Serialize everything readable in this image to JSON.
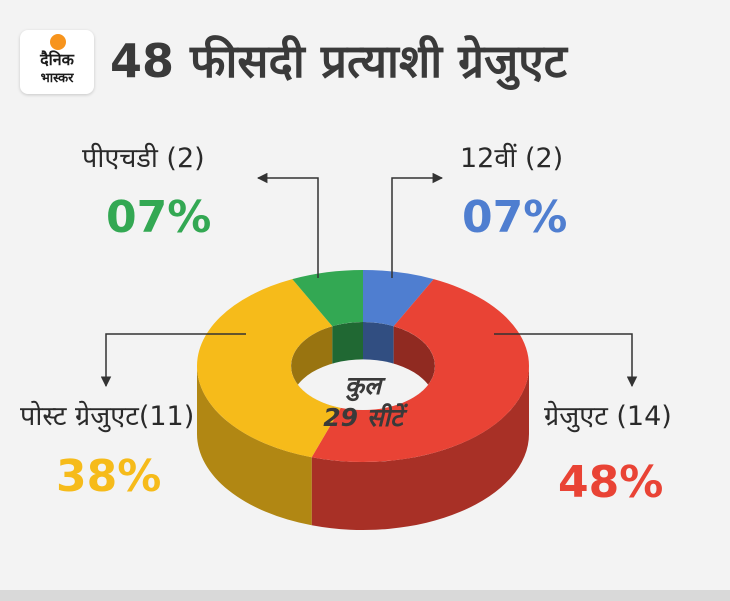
{
  "header": {
    "logo_line1": "दैनिक",
    "logo_line2": "भास्कर",
    "title": "48 फीसदी प्रत्याशी ग्रेजुएट"
  },
  "center": {
    "line1": "कुल",
    "line2": "29 सीटें"
  },
  "colors": {
    "red": "#e94335",
    "yellow": "#f6bb1a",
    "green": "#33a853",
    "blue": "#4f7ed0"
  },
  "chart_data": {
    "type": "pie",
    "donut": true,
    "legend": "none",
    "categories": [
      "12वीं",
      "ग्रेजुएट",
      "पोस्ट ग्रेजुएट",
      "पीएचडी"
    ],
    "counts": [
      2,
      14,
      11,
      2
    ],
    "values": [
      7,
      48,
      38,
      7
    ],
    "labels": [
      "12वीं (2)",
      "ग्रेजुएट (14)",
      "पोस्ट ग्रेजुएट(11)",
      "पीएचडी (2)"
    ],
    "percent_labels": [
      "07%",
      "48%",
      "38%",
      "07%"
    ],
    "total_label": "कुल 29 सीटें"
  }
}
